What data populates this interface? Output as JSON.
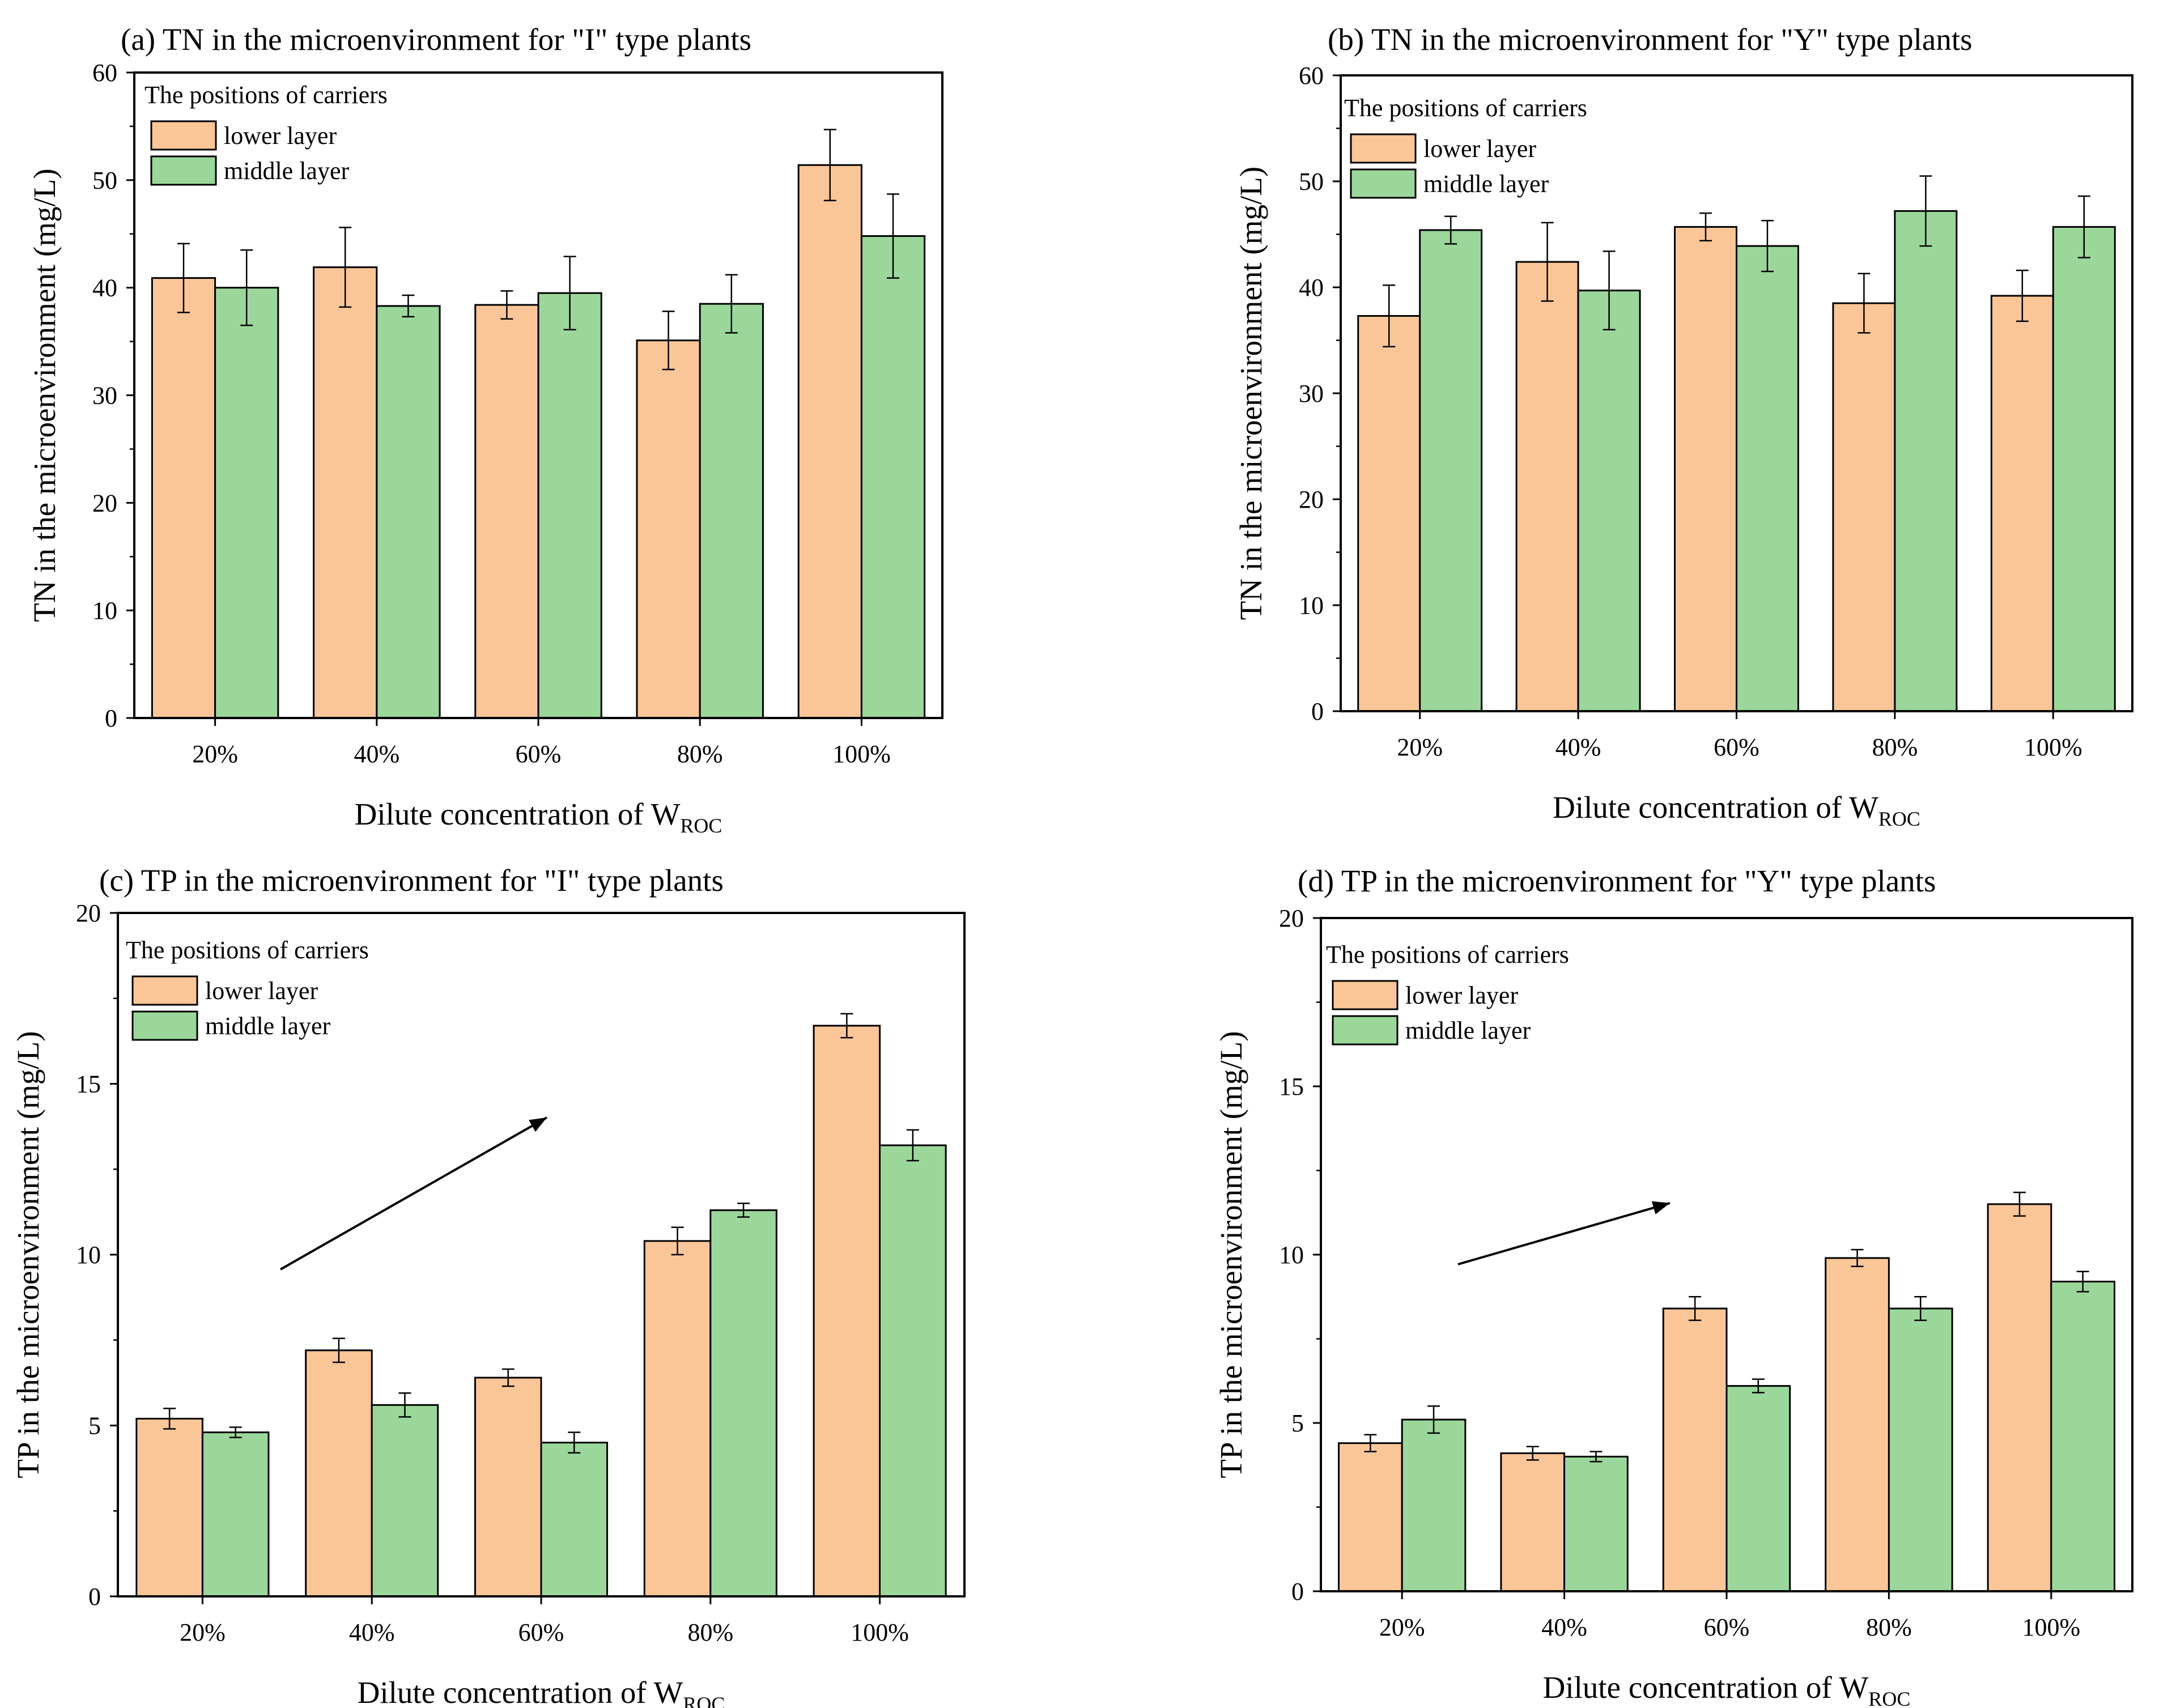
{
  "colors": {
    "lower": "#FAC698",
    "middle": "#9BD79A",
    "axis": "#000000"
  },
  "chart_data": [
    {
      "type": "bar",
      "title": "(a) TN in the microenvironment for \"I\" type plants",
      "xlabel": "Dilute concentration of W",
      "xlabel_sub": "ROC",
      "ylabel": "TN  in the microenvironment (mg/L)",
      "ylim": [
        0,
        60
      ],
      "yticks": [
        "0",
        "10",
        "20",
        "30",
        "40",
        "50",
        "60"
      ],
      "categories": [
        "20%",
        "40%",
        "60%",
        "80%",
        "100%"
      ],
      "legend_title": "The positions of carriers",
      "legend_position": "top-left",
      "series": [
        {
          "name": "lower layer",
          "values": [
            40.9,
            41.9,
            38.4,
            35.1,
            51.4
          ],
          "errors": [
            3.2,
            3.7,
            1.3,
            2.7,
            3.3
          ]
        },
        {
          "name": "middle layer",
          "values": [
            40.0,
            38.3,
            39.5,
            38.5,
            44.8
          ],
          "errors": [
            3.5,
            1.0,
            3.4,
            2.7,
            3.9
          ]
        }
      ]
    },
    {
      "type": "bar",
      "title": "(b) TN in the microenvironment for \"Y\" type plants",
      "xlabel": "Dilute concentration of W",
      "xlabel_sub": "ROC",
      "ylabel": "TN  in the microenvironment (mg/L)",
      "ylim": [
        0,
        60
      ],
      "yticks": [
        "0",
        "10",
        "20",
        "30",
        "40",
        "50",
        "60"
      ],
      "categories": [
        "20%",
        "40%",
        "60%",
        "80%",
        "100%"
      ],
      "legend_title": "The positions of carriers",
      "legend_position": "top-left",
      "series": [
        {
          "name": "lower layer",
          "values": [
            37.3,
            42.4,
            45.7,
            38.5,
            39.2
          ],
          "errors": [
            2.9,
            3.7,
            1.3,
            2.8,
            2.4
          ]
        },
        {
          "name": "middle layer",
          "values": [
            45.4,
            39.7,
            43.9,
            47.2,
            45.7
          ],
          "errors": [
            1.3,
            3.7,
            2.4,
            3.3,
            2.9
          ]
        }
      ]
    },
    {
      "type": "bar",
      "title": "(c) TP in the microenvironment for \"I\" type plants",
      "xlabel": "Dilute concentration of W",
      "xlabel_sub": "ROC",
      "ylabel": "TP  in the microenvironment (mg/L)",
      "ylim": [
        0,
        20
      ],
      "yticks": [
        "0",
        "5",
        "10",
        "15",
        "20"
      ],
      "categories": [
        "20%",
        "40%",
        "60%",
        "80%",
        "100%"
      ],
      "legend_title": "The positions of carriers",
      "legend_position": "top-left",
      "trend_arrow": true,
      "series": [
        {
          "name": "lower layer",
          "values": [
            5.2,
            7.2,
            6.4,
            10.4,
            16.7
          ],
          "errors": [
            0.3,
            0.35,
            0.25,
            0.4,
            0.35
          ]
        },
        {
          "name": "middle layer",
          "values": [
            4.8,
            5.6,
            4.5,
            11.3,
            13.2
          ],
          "errors": [
            0.15,
            0.35,
            0.3,
            0.2,
            0.45
          ]
        }
      ]
    },
    {
      "type": "bar",
      "title": "(d) TP in the microenvironment for \"Y\" type plants",
      "xlabel": "Dilute concentration of W",
      "xlabel_sub": "ROC",
      "ylabel": "TP  in the microenvironment (mg/L)",
      "ylim": [
        0,
        20
      ],
      "yticks": [
        "0",
        "5",
        "10",
        "15",
        "20"
      ],
      "categories": [
        "20%",
        "40%",
        "60%",
        "80%",
        "100%"
      ],
      "legend_title": "The positions of carriers",
      "legend_position": "top-left",
      "trend_arrow": true,
      "series": [
        {
          "name": "lower layer",
          "values": [
            4.4,
            4.1,
            8.4,
            9.9,
            11.5
          ],
          "errors": [
            0.25,
            0.2,
            0.35,
            0.25,
            0.35
          ]
        },
        {
          "name": "middle layer",
          "values": [
            5.1,
            4.0,
            6.1,
            8.4,
            9.2
          ],
          "errors": [
            0.4,
            0.15,
            0.2,
            0.35,
            0.3
          ]
        }
      ]
    }
  ]
}
